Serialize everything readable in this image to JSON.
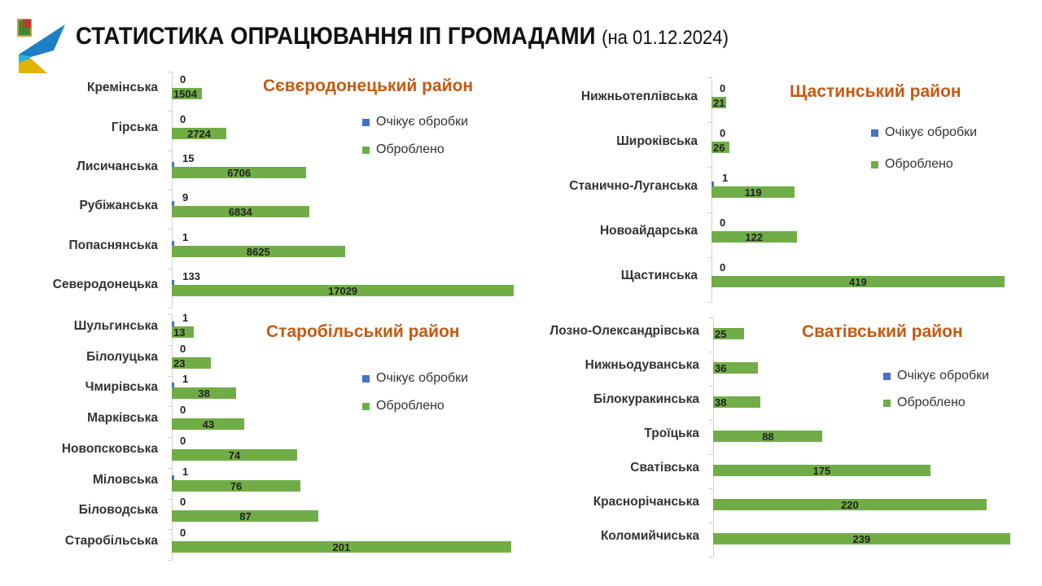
{
  "header": {
    "title": "СТАТИСТИКА ОПРАЦЮВАННЯ ІП ГРОМАДАМИ",
    "subtitle": "(на 01.12.2024)"
  },
  "colors": {
    "pending": "#4472c4",
    "processed": "#70ad47",
    "title": "#c55a11"
  },
  "chart_data": [
    {
      "type": "bar",
      "title": "Сєвєродонецький район",
      "legend": [
        "Очікує обробки",
        "Оброблено"
      ],
      "categories": [
        "Кремінська",
        "Гірська",
        "Лисичанська",
        "Рубіжанська",
        "Попаснянська",
        "Северодонецька"
      ],
      "series": [
        {
          "name": "Очікує обробки",
          "values": [
            0,
            0,
            15,
            9,
            1,
            133
          ]
        },
        {
          "name": "Оброблено",
          "values": [
            1504,
            2724,
            6706,
            6834,
            8625,
            17029
          ]
        }
      ]
    },
    {
      "type": "bar",
      "title": "Щастинський район",
      "legend": [
        "Очікує обробки",
        "Оброблено"
      ],
      "categories": [
        "Нижньотеплівська",
        "Широківська",
        "Станично-Луганська",
        "Новоайдарська",
        "Щастинська"
      ],
      "series": [
        {
          "name": "Очікує обробки",
          "values": [
            0,
            0,
            1,
            0,
            0
          ]
        },
        {
          "name": "Оброблено",
          "values": [
            21,
            26,
            119,
            122,
            419
          ]
        }
      ]
    },
    {
      "type": "bar",
      "title": "Старобільський район",
      "legend": [
        "Очікує обробки",
        "Оброблено"
      ],
      "categories": [
        "Шульгинська",
        "Білолуцька",
        "Чмирівська",
        "Марківська",
        "Новопсковська",
        "Міловська",
        "Біловодська",
        "Старобільська"
      ],
      "series": [
        {
          "name": "Очікує обробки",
          "values": [
            1,
            0,
            1,
            0,
            0,
            1,
            0,
            0
          ]
        },
        {
          "name": "Оброблено",
          "values": [
            13,
            23,
            38,
            43,
            74,
            76,
            87,
            201
          ]
        }
      ]
    },
    {
      "type": "bar",
      "title": "Сватівський район",
      "legend": [
        "Очікує обробки",
        "Оброблено"
      ],
      "categories": [
        "Лозно-Олександрівська",
        "Нижньодуванська",
        "Білокуракинська",
        "Троїцька",
        "Сватівська",
        "Краснорічанська",
        "Коломийчиська"
      ],
      "series": [
        {
          "name": "Очікує обробки",
          "values": [
            null,
            null,
            null,
            null,
            null,
            null,
            null
          ]
        },
        {
          "name": "Оброблено",
          "values": [
            25,
            36,
            38,
            88,
            175,
            220,
            239
          ]
        }
      ]
    }
  ]
}
